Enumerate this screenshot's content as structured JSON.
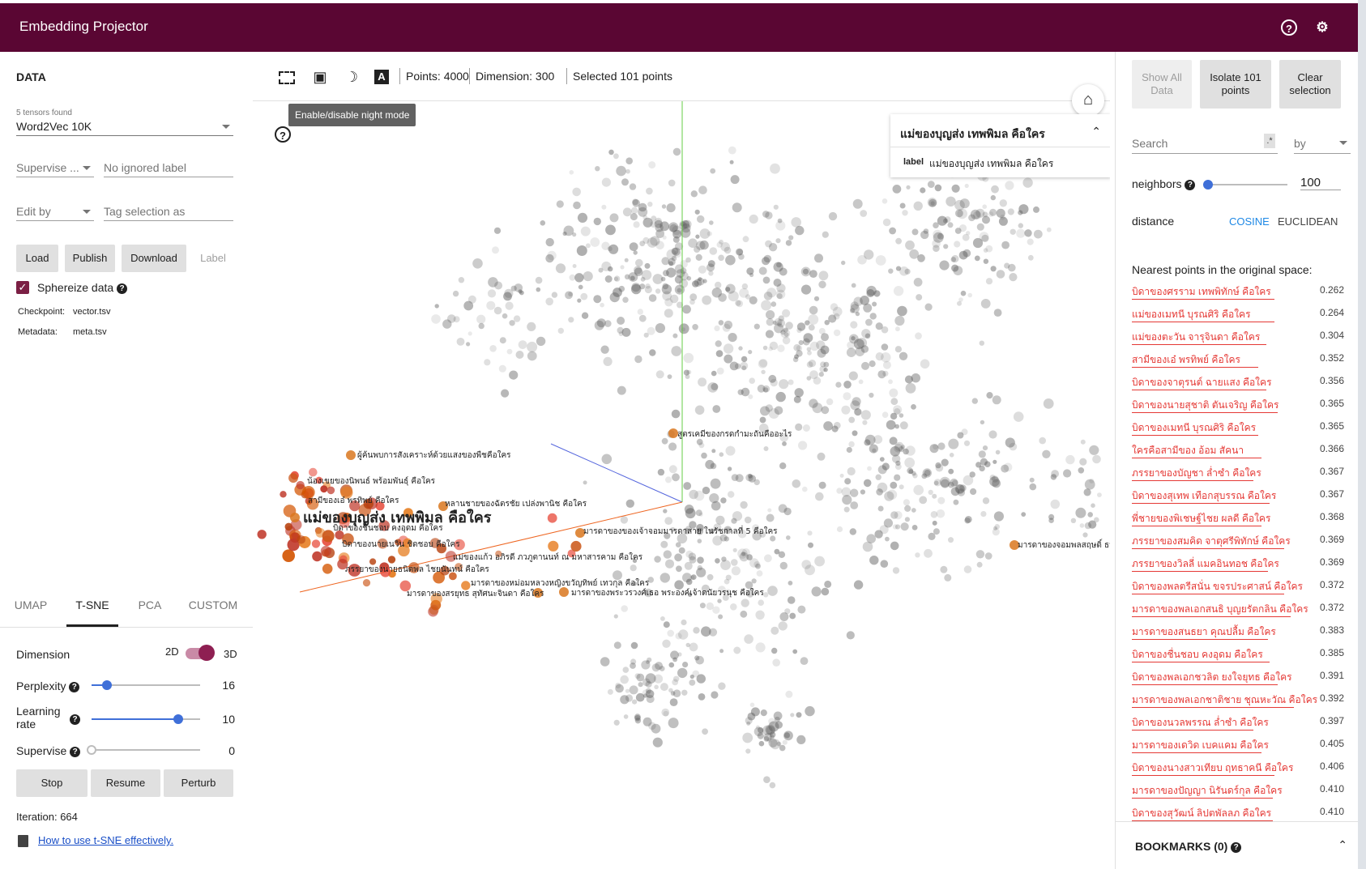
{
  "app": {
    "title": "Embedding Projector"
  },
  "data_panel": {
    "header": "DATA",
    "tensors_found": "5 tensors found",
    "tensor_selected": "Word2Vec 10K",
    "supervise_placeholder": "Supervise ...",
    "ignored_label_placeholder": "No ignored label",
    "edit_by_placeholder": "Edit by",
    "tag_selection_placeholder": "Tag selection as",
    "buttons": {
      "load": "Load",
      "publish": "Publish",
      "download": "Download",
      "label": "Label"
    },
    "sphereize_label": "Sphereize data",
    "checkpoint_key": "Checkpoint:",
    "checkpoint_value": "vector.tsv",
    "metadata_key": "Metadata:",
    "metadata_value": "meta.tsv"
  },
  "projection_tabs": [
    "UMAP",
    "T-SNE",
    "PCA",
    "CUSTOM"
  ],
  "active_tab": "T-SNE",
  "tsne": {
    "dimension_label": "Dimension",
    "dim_2d": "2D",
    "dim_3d": "3D",
    "dimension_selected": "3D",
    "perplexity_label": "Perplexity",
    "perplexity_value": "16",
    "perplexity_fraction": 0.14,
    "learning_rate_label": "Learning rate",
    "learning_rate_value": "10",
    "learning_rate_fraction": 0.8,
    "supervise_label": "Supervise",
    "supervise_value": "0",
    "supervise_fraction": 0.0,
    "buttons": {
      "stop": "Stop",
      "resume": "Resume",
      "perturb": "Perturb"
    },
    "iteration": "Iteration: 664",
    "help_link": "How to use t-SNE effectively."
  },
  "toolbar": {
    "points": "Points: 4000",
    "dimension": "Dimension: 300",
    "selected": "Selected 101 points",
    "tooltip": "Enable/disable night mode"
  },
  "info_card": {
    "title": "แม่ของบุญส่ง เทพพิมล คือใคร",
    "label_key": "label",
    "label_value": "แม่ของบุญส่ง เทพพิมล คือใคร"
  },
  "point_labels": [
    "สูตรเคมีของกรดกำมะถันคืออะไร",
    "ผู้ค้นพบการสังเคราะห์ด้วยแสงของพืชคือใคร",
    "น้องเขยของนิพนธ์ พร้อมพันธุ์ คือใคร",
    "สามีของเอ๋ พรทิพย์ คือใคร",
    "หลานชายของฉัตรชัย เปล่งพานิช คือใคร",
    "แม่ของบุญส่ง เทพพิมล คือใคร",
    "บิดาของชื่นชอบ คงอุดม คือใคร",
    "มารดาของของเจ้าจอมมารดาสาย ในรัชกาลที่ 5 คือใคร",
    "มารดาของจอมพลสฤษดิ์ ธนะรัชต์",
    "บิดาของนายเนวิน ชิดชอบ คือใคร",
    "แม่ของแก้ว อภิรดี ภวภูตานนท์ ณ มหาสารคาม คือใคร",
    "ภรรยาของนายธนิตพล ไชยนันทน์ คือใคร",
    "มารดาของหม่อมหลวงหญิงขวัญทิพย์ เทวกุล คือใคร",
    "มารดาของสรยุทธ สุทัศนะจินดา คือใคร",
    "มารดาของพระวรวงศ์เธอ พระองค์เจ้าดนัยวรนุช คือใคร"
  ],
  "right_panel": {
    "show_all_data": "Show All Data",
    "isolate_points": "Isolate 101 points",
    "clear_selection": "Clear selection",
    "search_placeholder": "Search",
    "regex_toggle": ".*",
    "by_placeholder": "by",
    "neighbors_label": "neighbors",
    "neighbors_value": "100",
    "neighbors_fraction": 0.0,
    "distance_label": "distance",
    "distance_cosine": "COSINE",
    "distance_euclidean": "EUCLIDEAN",
    "distance_selected": "COSINE",
    "nearest_title": "Nearest points in the original space:",
    "nearest": [
      {
        "label": "บิดาของศรราม เทพพิทักษ์ คือใคร",
        "value": "0.262"
      },
      {
        "label": "แม่ของเมทนี บุรณศิริ คือใคร",
        "value": "0.264"
      },
      {
        "label": "แม่ของตะวัน จารุจินดา คือใคร",
        "value": "0.304"
      },
      {
        "label": "สามีของเอ๋ พรทิพย์ คือใคร",
        "value": "0.352"
      },
      {
        "label": "บิดาของจาตุรนต์ ฉายแสง คือใคร",
        "value": "0.356"
      },
      {
        "label": "บิดาของนายสุชาติ ตันเจริญ คือใคร",
        "value": "0.365"
      },
      {
        "label": "บิดาของเมทนี บุรณศิริ คือใคร",
        "value": "0.365"
      },
      {
        "label": "ใครคือสามีของ อ้อม สัคนา",
        "value": "0.366"
      },
      {
        "label": "ภรรยาของบัญชา ล่ำซำ คือใคร",
        "value": "0.367"
      },
      {
        "label": "บิดาของสุเทพ เทือกสุบรรณ คือใคร",
        "value": "0.367"
      },
      {
        "label": "พี่ชายของพิเชษฐ์ไชย ผลดี คือใคร",
        "value": "0.368"
      },
      {
        "label": "ภรรยาของสมคิด จาตุศรีพิทักษ์ คือใคร",
        "value": "0.369"
      },
      {
        "label": "ภรรยาของวิลลี่ แมคอินทอช คือใคร",
        "value": "0.369"
      },
      {
        "label": "บิดาของพลตรีสนั่น ขจรประศาสน์ คือใคร",
        "value": "0.372"
      },
      {
        "label": "มารดาของพลเอกสนธิ บุญยรัตกลิน คือใคร",
        "value": "0.372"
      },
      {
        "label": "มารดาของสนธยา คุณปลื้ม คือใคร",
        "value": "0.383"
      },
      {
        "label": "บิดาของชื่นชอบ คงอุดม คือใคร",
        "value": "0.385"
      },
      {
        "label": "บิดาของพลเอกชวลิต ยงใจยุทธ คือใคร",
        "value": "0.391"
      },
      {
        "label": "มารดาของพลเอกชาติชาย ชุณหะวัณ คือใคร",
        "value": "0.392"
      },
      {
        "label": "บิดาของนวลพรรณ ล่ำซำ คือใคร",
        "value": "0.397"
      },
      {
        "label": "มารดาของเดวิด เบคแคม คือใคร",
        "value": "0.405"
      },
      {
        "label": "บิดาของนางสาวเทียบ ฤทธาคนี คือใคร",
        "value": "0.406"
      },
      {
        "label": "มารดาของปัญญา นิรันดร์กุล คือใคร",
        "value": "0.410"
      },
      {
        "label": "บิดาของสุวัฒน์ ลิปตพัลลภ คือใคร",
        "value": "0.410"
      }
    ],
    "bookmarks": "BOOKMARKS (0)"
  },
  "colors": {
    "header": "#5a0633",
    "accent": "#8e1f52",
    "link": "#1a4fc7",
    "nearest": "#e53935",
    "slider": "#3f6fd8"
  }
}
